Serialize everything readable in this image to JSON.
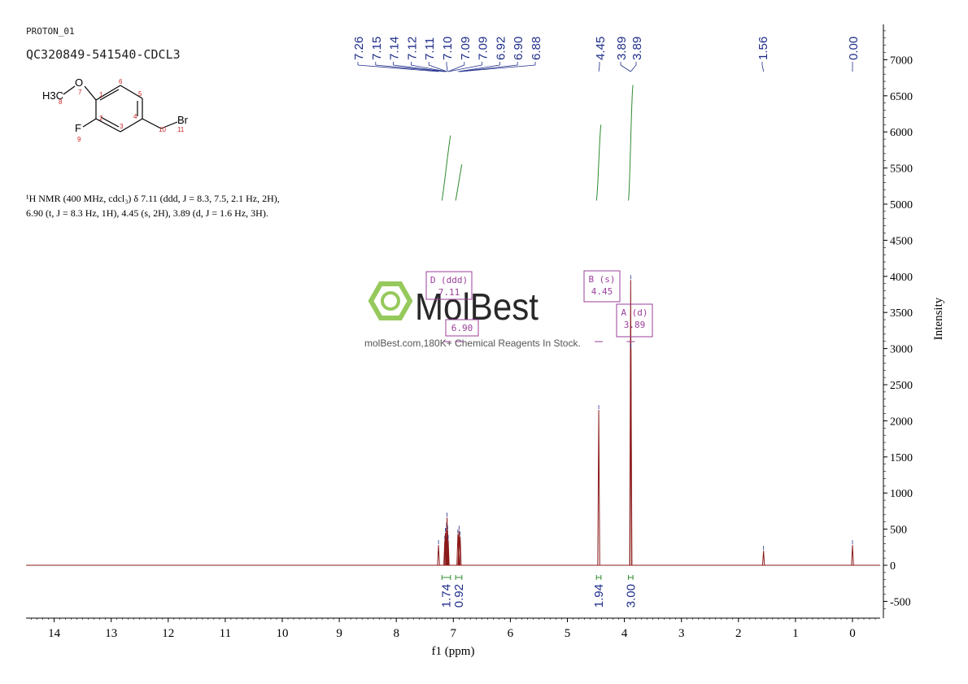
{
  "header": {
    "pulse_name": "PROTON_01",
    "sample_id": "QC320849-541540-CDCL3"
  },
  "structure": {
    "atoms": {
      "methyl": "H3C",
      "oxygen": "O",
      "fluorine": "F",
      "bromine": "Br"
    },
    "atom_numbers": [
      "1",
      "2",
      "3",
      "4",
      "5",
      "6",
      "7",
      "8",
      "9",
      "10",
      "11"
    ]
  },
  "nmr_report": {
    "line1": "¹H NMR (400 MHz, cdcl₃) δ 7.11 (ddd, J = 8.3, 7.5, 2.1 Hz, 2H),",
    "line2": "6.90 (t, J = 8.3 Hz, 1H), 4.45 (s, 2H), 3.89 (d, J = 1.6 Hz, 3H)."
  },
  "watermark": {
    "brand": "MolBest",
    "tagline": "molBest.com,180K+ Chemical Reagents In Stock."
  },
  "colors": {
    "spectrum": "#8b1a1a",
    "peak_labels": "#1f2d8a",
    "integral": "#2e8b2e",
    "multiplet_box": "#9b3f9b",
    "axis": "#000000",
    "watermark_green": "#8bc34a"
  },
  "chart_data": {
    "type": "line",
    "xlabel": "f1 (ppm)",
    "ylabel": "Intensity",
    "xlim": [
      14.5,
      -0.5
    ],
    "ylim": [
      -700,
      7500
    ],
    "x_ticks": [
      "14",
      "13",
      "12",
      "11",
      "10",
      "9",
      "8",
      "7",
      "6",
      "5",
      "4",
      "3",
      "2",
      "1",
      "0"
    ],
    "x_tick_values": [
      14,
      13,
      12,
      11,
      10,
      9,
      8,
      7,
      6,
      5,
      4,
      3,
      2,
      1,
      0
    ],
    "y_ticks": [
      "7000",
      "6500",
      "6000",
      "5500",
      "5000",
      "4500",
      "4000",
      "3500",
      "3000",
      "2500",
      "2000",
      "1500",
      "1000",
      "500",
      "0",
      "-500"
    ],
    "y_tick_values": [
      7000,
      6500,
      6000,
      5500,
      5000,
      4500,
      4000,
      3500,
      3000,
      2500,
      2000,
      1500,
      1000,
      500,
      0,
      -500
    ],
    "peaks": [
      {
        "ppm": 7.26,
        "intensity": 280
      },
      {
        "ppm": 7.15,
        "intensity": 340
      },
      {
        "ppm": 7.14,
        "intensity": 450
      },
      {
        "ppm": 7.12,
        "intensity": 520
      },
      {
        "ppm": 7.11,
        "intensity": 660
      },
      {
        "ppm": 7.1,
        "intensity": 480
      },
      {
        "ppm": 7.09,
        "intensity": 350
      },
      {
        "ppm": 6.92,
        "intensity": 430
      },
      {
        "ppm": 6.9,
        "intensity": 480
      },
      {
        "ppm": 6.88,
        "intensity": 400
      },
      {
        "ppm": 4.45,
        "intensity": 2150
      },
      {
        "ppm": 3.89,
        "intensity": 3950
      },
      {
        "ppm": 3.885,
        "intensity": 3000
      },
      {
        "ppm": 1.56,
        "intensity": 200
      },
      {
        "ppm": 0.0,
        "intensity": 280
      }
    ],
    "peak_labels": [
      {
        "text": "7.26",
        "ppm": 7.26
      },
      {
        "text": "7.15",
        "ppm": 7.15
      },
      {
        "text": "7.14",
        "ppm": 7.14
      },
      {
        "text": "7.12",
        "ppm": 7.12
      },
      {
        "text": "7.11",
        "ppm": 7.11
      },
      {
        "text": "7.10",
        "ppm": 7.1
      },
      {
        "text": "7.09",
        "ppm": 7.09
      },
      {
        "text": "7.09",
        "ppm": 7.09
      },
      {
        "text": "6.92",
        "ppm": 6.92
      },
      {
        "text": "6.90",
        "ppm": 6.9
      },
      {
        "text": "6.88",
        "ppm": 6.88
      },
      {
        "text": "4.45",
        "ppm": 4.45
      },
      {
        "text": "3.89",
        "ppm": 3.89
      },
      {
        "text": "3.89",
        "ppm": 3.89
      },
      {
        "text": "1.56",
        "ppm": 1.56
      },
      {
        "text": "0.00",
        "ppm": 0.0
      }
    ],
    "integrals": [
      {
        "value": "1.74",
        "from": 7.2,
        "to": 7.05,
        "curve_top": 5950,
        "curve_bottom": 5050
      },
      {
        "value": "0.92",
        "from": 6.96,
        "to": 6.85,
        "curve_top": 5550,
        "curve_bottom": 5050
      },
      {
        "value": "1.94",
        "from": 4.49,
        "to": 4.41,
        "curve_top": 6100,
        "curve_bottom": 5050
      },
      {
        "value": "3.00",
        "from": 3.93,
        "to": 3.85,
        "curve_top": 6650,
        "curve_bottom": 5050
      }
    ],
    "multiplets": [
      {
        "label": "D (ddd)",
        "value": "7.11",
        "ppm": 7.11
      },
      {
        "label": "C (t)",
        "value": "6.90",
        "ppm": 6.9
      },
      {
        "label": "B (s)",
        "value": "4.45",
        "ppm": 4.45
      },
      {
        "label": "A (d)",
        "value": "3.89",
        "ppm": 3.89
      }
    ]
  }
}
